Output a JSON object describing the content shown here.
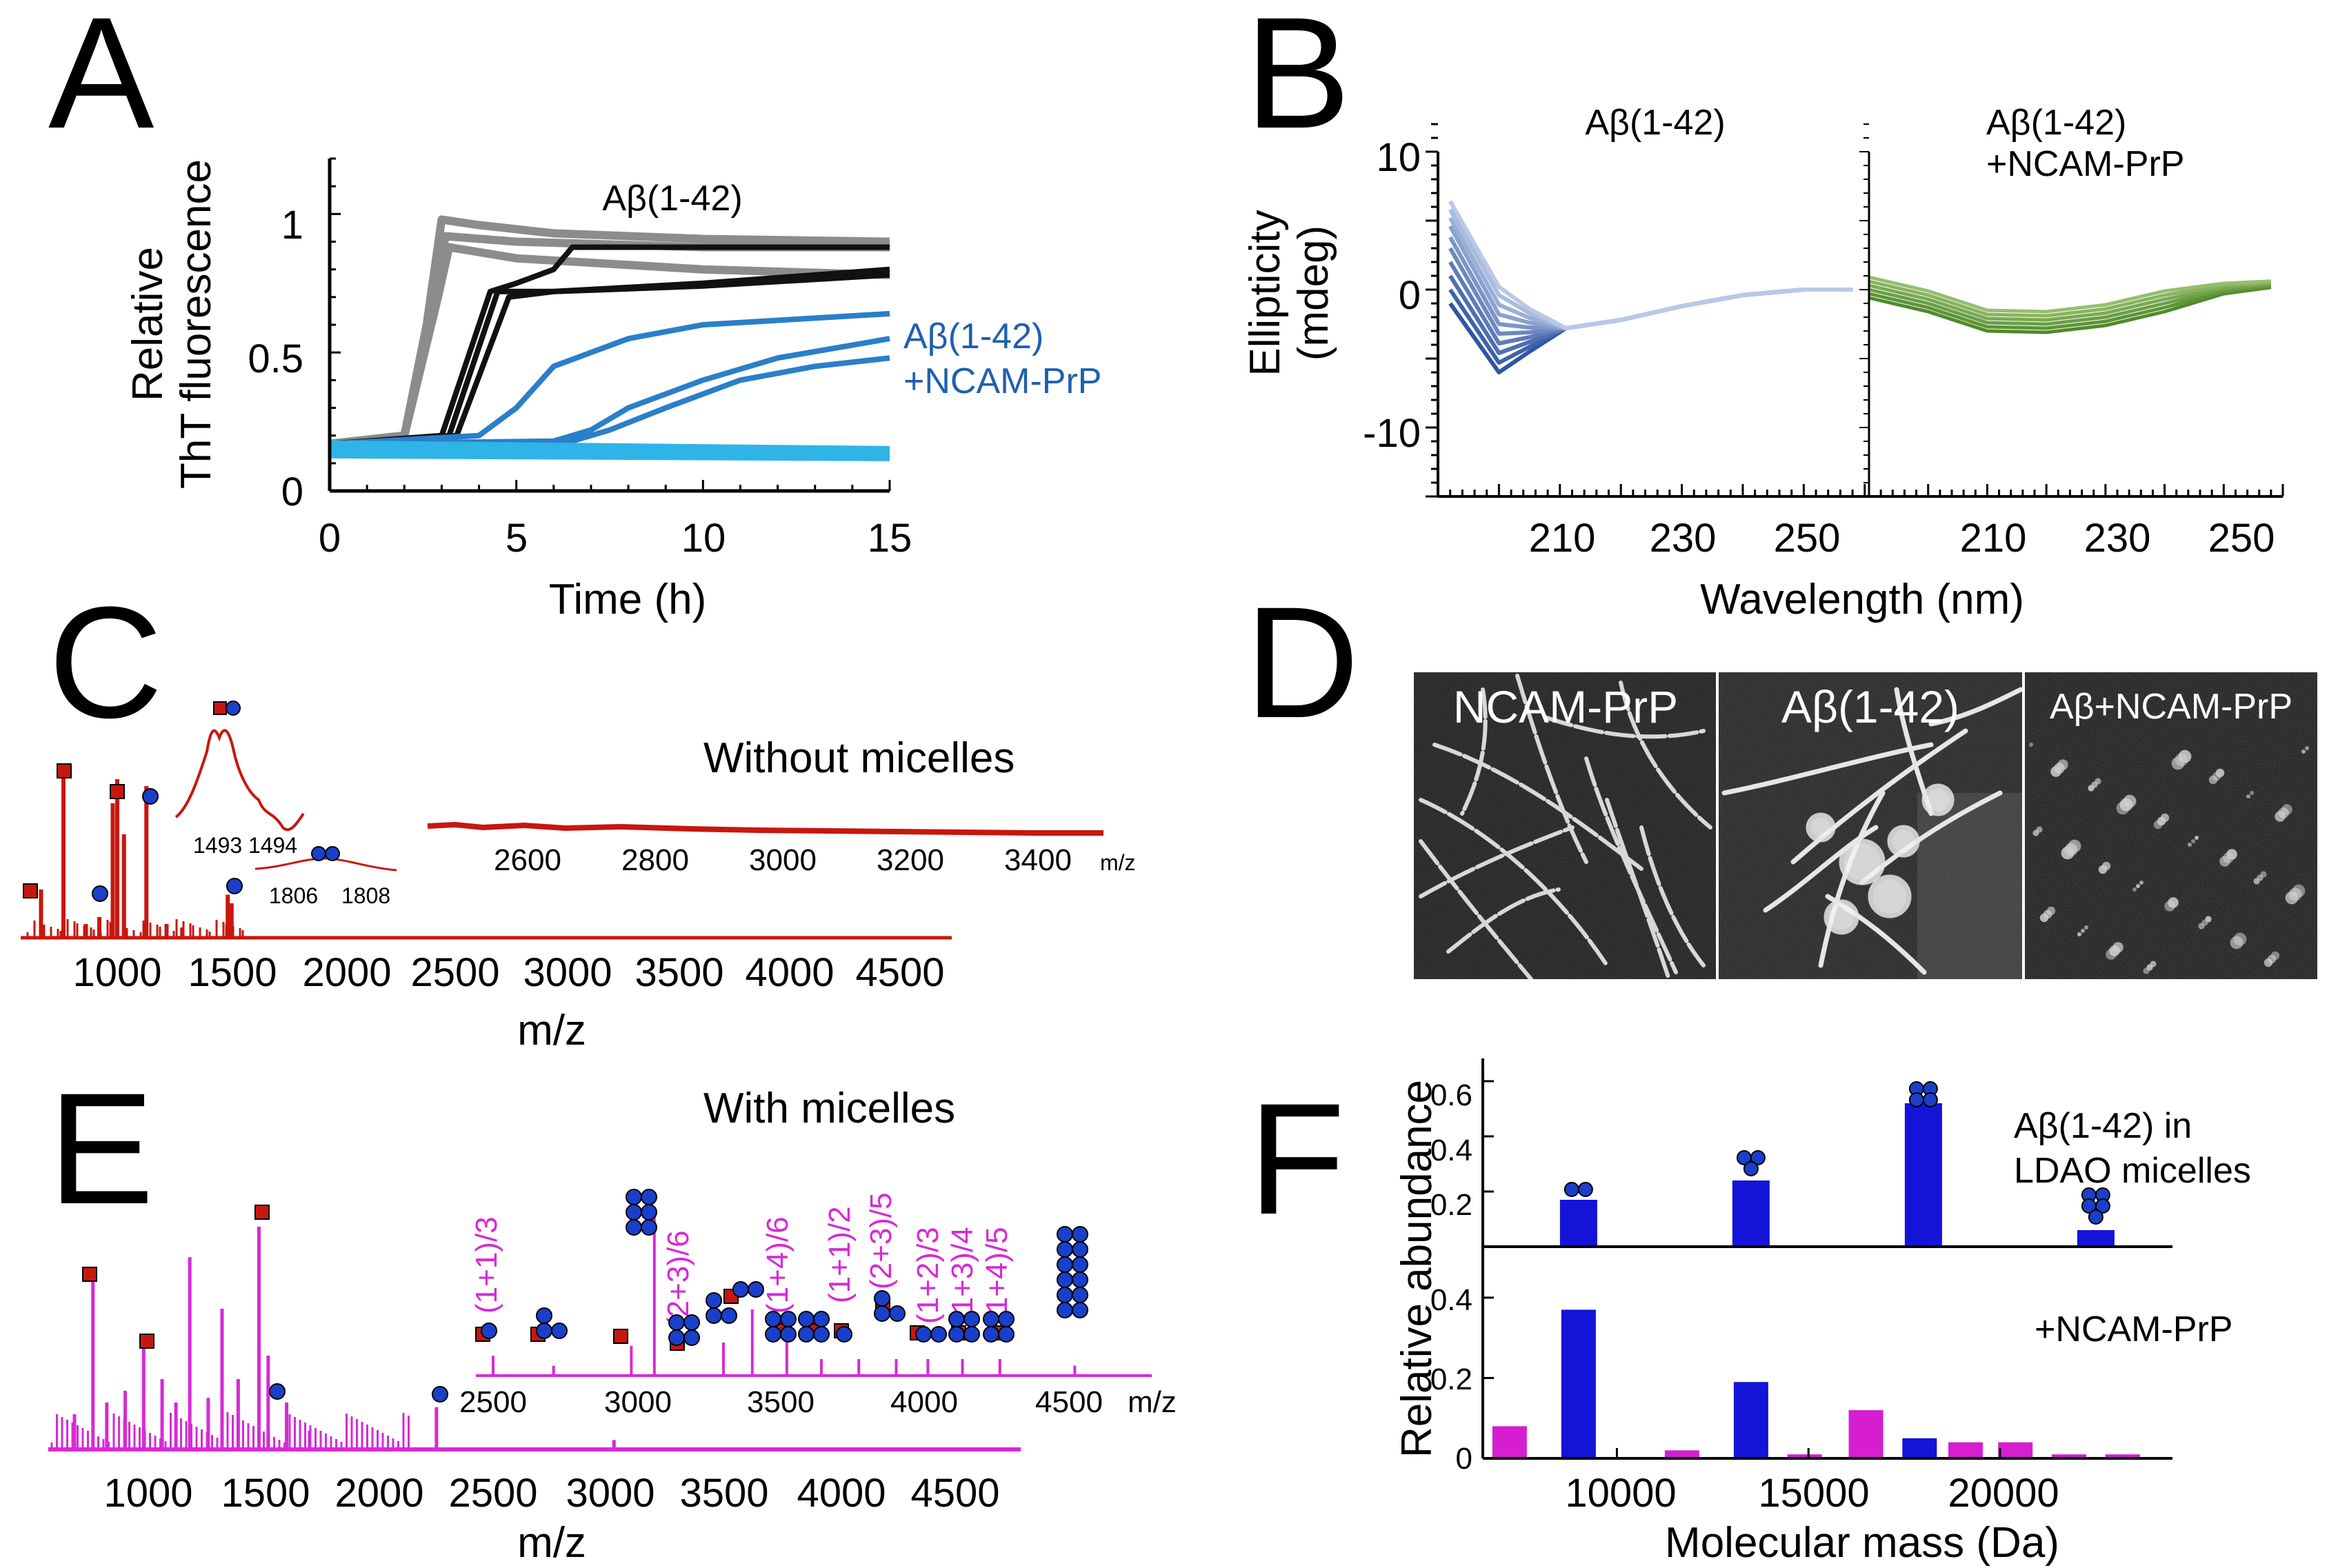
{
  "panels": {
    "a": "A",
    "b": "B",
    "c": "C",
    "d": "D",
    "e": "E",
    "f": "F"
  },
  "colors": {
    "gray": "#8c8c8c",
    "black": "#111111",
    "blue_mid": "#2a7fc9",
    "cyan": "#2fb4e8",
    "cd_blue": "#2f56a0",
    "cd_light": "#b9c8e6",
    "cd_green": "#4f8a2b",
    "ms_red": "#c8160e",
    "ms_magenta": "#d62ad6",
    "bar_blue": "#1414d8",
    "bar_magenta": "#d61ed0",
    "marker_red": "#c8160e",
    "marker_blue": "#1a3fc9"
  },
  "chart_data": [
    {
      "id": "A",
      "type": "line",
      "title": "Aβ(1-42)",
      "annotation": "Aβ(1-42)",
      "annotation2_line1": "Aβ(1-42)",
      "annotation2_line2": "+NCAM-PrP",
      "xlabel": "Time (h)",
      "ylabel_line1": "Relative",
      "ylabel_line2": "ThT fluorescence",
      "xlim": [
        0,
        15
      ],
      "ylim": [
        0,
        1.2
      ],
      "xticks": [
        "0",
        "5",
        "10",
        "15"
      ],
      "yticks": [
        "0",
        "0.5",
        "1"
      ],
      "series": [
        {
          "name": "gray-1",
          "color": "gray",
          "points": [
            [
              0,
              0.17
            ],
            [
              2,
              0.2
            ],
            [
              2.6,
              0.6
            ],
            [
              3,
              0.98
            ],
            [
              4,
              0.96
            ],
            [
              6,
              0.93
            ],
            [
              10,
              0.91
            ],
            [
              15,
              0.9
            ]
          ]
        },
        {
          "name": "gray-2",
          "color": "gray",
          "points": [
            [
              0,
              0.17
            ],
            [
              2,
              0.2
            ],
            [
              2.7,
              0.6
            ],
            [
              3.1,
              0.92
            ],
            [
              5,
              0.9
            ],
            [
              10,
              0.88
            ],
            [
              15,
              0.88
            ]
          ]
        },
        {
          "name": "gray-3",
          "color": "gray",
          "points": [
            [
              0,
              0.17
            ],
            [
              2,
              0.2
            ],
            [
              2.9,
              0.7
            ],
            [
              3.2,
              0.88
            ],
            [
              5,
              0.84
            ],
            [
              10,
              0.8
            ],
            [
              15,
              0.78
            ]
          ]
        },
        {
          "name": "black-1",
          "color": "black",
          "points": [
            [
              0,
              0.17
            ],
            [
              3,
              0.2
            ],
            [
              4.3,
              0.72
            ],
            [
              5,
              0.75
            ],
            [
              6,
              0.8
            ],
            [
              6.5,
              0.88
            ],
            [
              10,
              0.88
            ],
            [
              15,
              0.88
            ]
          ]
        },
        {
          "name": "black-2",
          "color": "black",
          "points": [
            [
              0,
              0.17
            ],
            [
              3.2,
              0.2
            ],
            [
              4.5,
              0.72
            ],
            [
              6,
              0.72
            ],
            [
              10,
              0.75
            ],
            [
              15,
              0.8
            ]
          ]
        },
        {
          "name": "black-3",
          "color": "black",
          "points": [
            [
              0,
              0.17
            ],
            [
              3.4,
              0.2
            ],
            [
              4.8,
              0.7
            ],
            [
              6,
              0.72
            ],
            [
              10,
              0.74
            ],
            [
              15,
              0.78
            ]
          ]
        },
        {
          "name": "blue-1",
          "color": "blue_mid",
          "points": [
            [
              0,
              0.17
            ],
            [
              4,
              0.2
            ],
            [
              5,
              0.3
            ],
            [
              6,
              0.45
            ],
            [
              8,
              0.55
            ],
            [
              10,
              0.6
            ],
            [
              15,
              0.64
            ]
          ]
        },
        {
          "name": "blue-2",
          "color": "blue_mid",
          "points": [
            [
              0,
              0.17
            ],
            [
              6,
              0.18
            ],
            [
              7,
              0.22
            ],
            [
              8,
              0.3
            ],
            [
              10,
              0.4
            ],
            [
              12,
              0.48
            ],
            [
              15,
              0.55
            ]
          ]
        },
        {
          "name": "blue-3",
          "color": "blue_mid",
          "points": [
            [
              0,
              0.17
            ],
            [
              6.5,
              0.18
            ],
            [
              7.5,
              0.22
            ],
            [
              9,
              0.3
            ],
            [
              11,
              0.4
            ],
            [
              13,
              0.45
            ],
            [
              15,
              0.48
            ]
          ]
        },
        {
          "name": "cyan-1",
          "color": "cyan",
          "points": [
            [
              0,
              0.17
            ],
            [
              15,
              0.15
            ]
          ]
        },
        {
          "name": "cyan-2",
          "color": "cyan",
          "points": [
            [
              0,
              0.15
            ],
            [
              15,
              0.13
            ]
          ]
        },
        {
          "name": "cyan-3",
          "color": "cyan",
          "points": [
            [
              0,
              0.13
            ],
            [
              15,
              0.12
            ]
          ]
        }
      ]
    },
    {
      "id": "B",
      "type": "line",
      "title_left": "Aβ(1-42)",
      "title_right_line1": "Aβ(1-42)",
      "title_right_line2": "+NCAM-PrP",
      "xlabel": "Wavelength (nm)",
      "ylabel_line1": "Ellipticity",
      "ylabel_line2": "(mdeg)",
      "xlim": [
        190,
        260
      ],
      "ylim": [
        -15,
        12
      ],
      "yticks": [
        "10",
        "0",
        "-10"
      ],
      "xticks": [
        "210",
        "230",
        "250"
      ],
      "left_curves_min_at_200": [
        -6,
        -5.3,
        -4.6,
        -3.9,
        -3.2,
        -2.5,
        -1.8,
        -1.1,
        -0.4,
        0.2
      ],
      "left_curves_start": [
        -1,
        0,
        1,
        2,
        3,
        3.8,
        4.6,
        5.2,
        5.8,
        6.4
      ],
      "right_curves_offset": [
        -0.8,
        -0.5,
        -0.2,
        0.1,
        0.4,
        0.7
      ]
    },
    {
      "id": "C",
      "type": "bar",
      "inset_title": "Without micelles",
      "xlabel": "m/z",
      "xlim": [
        600,
        4800
      ],
      "xticks": [
        "1000",
        "1500",
        "2000",
        "2500",
        "3000",
        "3500",
        "4000",
        "4500"
      ],
      "peaks": [
        [
          660,
          0.28
        ],
        [
          760,
          1.0
        ],
        [
          860,
          0.08
        ],
        [
          920,
          0.12
        ],
        [
          980,
          0.78
        ],
        [
          1000,
          0.92
        ],
        [
          1030,
          0.6
        ],
        [
          1130,
          0.88
        ],
        [
          1220,
          0.08
        ],
        [
          1290,
          0.06
        ],
        [
          1493,
          0.25
        ],
        [
          1510,
          0.2
        ]
      ],
      "inset_zoom1_ticks": [
        "1493",
        "1494"
      ],
      "inset_zoom2_ticks": [
        "1806",
        "1808"
      ],
      "inset_ticks": [
        "2600",
        "2800",
        "3000",
        "3200",
        "3400"
      ],
      "inset_axis_unit": "m/z"
    },
    {
      "id": "D",
      "type": "table",
      "labels": [
        "NCAM-PrP",
        "Aβ(1-42)",
        "Aβ+NCAM-PrP"
      ]
    },
    {
      "id": "E",
      "type": "bar",
      "inset_title": "With micelles",
      "xlabel": "m/z",
      "xlim": [
        600,
        4800
      ],
      "xticks": [
        "1000",
        "1500",
        "2000",
        "2500",
        "3000",
        "3500",
        "4000",
        "4500"
      ],
      "peaks": [
        [
          680,
          0.15
        ],
        [
          760,
          0.72
        ],
        [
          820,
          0.2
        ],
        [
          900,
          0.25
        ],
        [
          980,
          0.48
        ],
        [
          1060,
          0.3
        ],
        [
          1120,
          0.2
        ],
        [
          1180,
          0.82
        ],
        [
          1260,
          0.22
        ],
        [
          1320,
          0.6
        ],
        [
          1390,
          0.3
        ],
        [
          1480,
          0.95
        ],
        [
          1520,
          0.4
        ],
        [
          1600,
          0.2
        ],
        [
          1700,
          0.08
        ],
        [
          2250,
          0.18
        ],
        [
          3020,
          0.04
        ]
      ],
      "inset_ticks": [
        "2500",
        "3000",
        "3500",
        "4000",
        "4500"
      ],
      "inset_axis_unit": "m/z",
      "inset_peaks": [
        [
          2500,
          0.12
        ],
        [
          2710,
          0.06
        ],
        [
          2980,
          0.18
        ],
        [
          3060,
          1.0
        ],
        [
          3300,
          0.2
        ],
        [
          3400,
          0.4
        ],
        [
          3520,
          0.25
        ],
        [
          3640,
          0.1
        ],
        [
          3770,
          0.1
        ],
        [
          3900,
          0.1
        ],
        [
          4010,
          0.1
        ],
        [
          4130,
          0.1
        ],
        [
          4260,
          0.1
        ],
        [
          4520,
          0.06
        ]
      ],
      "peak_labels": [
        {
          "text": "(1+1)/3",
          "color": "ms_magenta"
        },
        {
          "text": "(2+3)/6",
          "color": "ms_magenta"
        },
        {
          "text": "(1+4)/6",
          "color": "ms_magenta"
        },
        {
          "text": "(1+1)/2",
          "color": "ms_magenta"
        },
        {
          "text": "(2+3)/5",
          "color": "ms_magenta"
        },
        {
          "text": "(1+2)/3",
          "color": "ms_magenta"
        },
        {
          "text": "(1+3)/4",
          "color": "ms_magenta"
        },
        {
          "text": "(1+4)/5",
          "color": "ms_magenta"
        }
      ]
    },
    {
      "id": "F",
      "type": "bar",
      "top_label_line1": "Aβ(1-42) in",
      "top_label_line2": "LDAO micelles",
      "bottom_label": "+NCAM-PrP",
      "xlabel": "Molecular mass (Da)",
      "ylabel": "Relative abundance",
      "xlim": [
        6500,
        24500
      ],
      "xticks": [
        "10000",
        "15000",
        "20000"
      ],
      "top_yticks": [
        "0.2",
        "0.4",
        "0.6"
      ],
      "bottom_yticks": [
        "0",
        "0.2",
        "0.4"
      ],
      "top_ylim": [
        0,
        0.68
      ],
      "bottom_ylim": [
        0,
        0.52
      ],
      "top_series": [
        {
          "x": 9000,
          "value": 0.17,
          "color": "bar_blue"
        },
        {
          "x": 13500,
          "value": 0.24,
          "color": "bar_blue"
        },
        {
          "x": 18000,
          "value": 0.52,
          "color": "bar_blue"
        },
        {
          "x": 22500,
          "value": 0.06,
          "color": "bar_blue"
        }
      ],
      "bottom_series": [
        {
          "x": 7200,
          "value": 0.08,
          "color": "bar_magenta"
        },
        {
          "x": 9000,
          "value": 0.37,
          "color": "bar_blue"
        },
        {
          "x": 11700,
          "value": 0.02,
          "color": "bar_magenta"
        },
        {
          "x": 13500,
          "value": 0.19,
          "color": "bar_blue"
        },
        {
          "x": 14900,
          "value": 0.01,
          "color": "bar_magenta"
        },
        {
          "x": 16500,
          "value": 0.12,
          "color": "bar_magenta"
        },
        {
          "x": 17900,
          "value": 0.05,
          "color": "bar_blue"
        },
        {
          "x": 19100,
          "value": 0.04,
          "color": "bar_magenta"
        },
        {
          "x": 20400,
          "value": 0.04,
          "color": "bar_magenta"
        },
        {
          "x": 21800,
          "value": 0.01,
          "color": "bar_magenta"
        },
        {
          "x": 23200,
          "value": 0.01,
          "color": "bar_magenta"
        }
      ]
    }
  ]
}
